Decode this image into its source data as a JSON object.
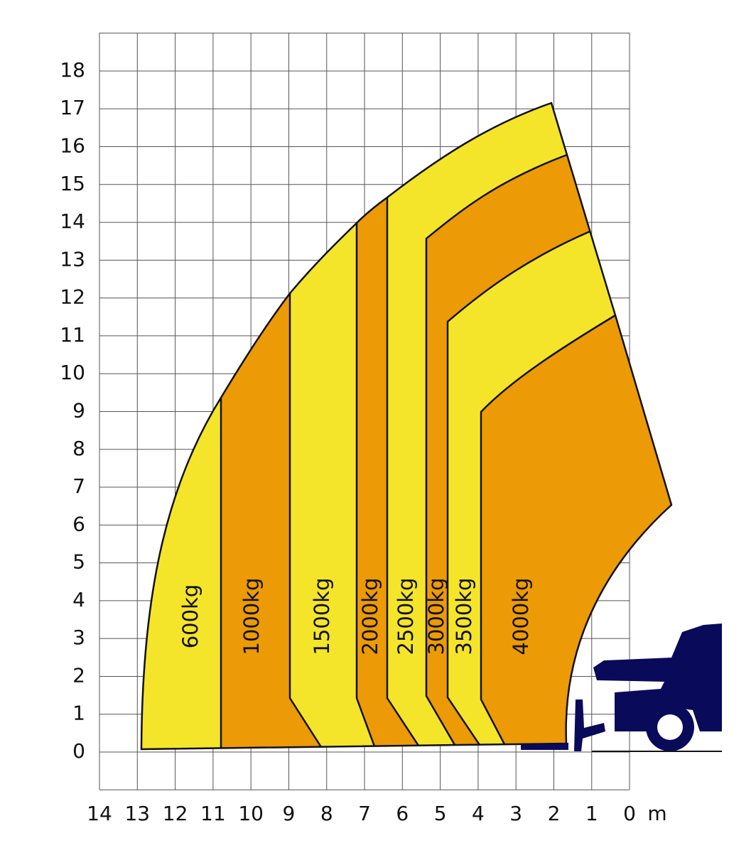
{
  "y_axis": {
    "ticks": [
      "0",
      "1",
      "2",
      "3",
      "4",
      "5",
      "6",
      "7",
      "8",
      "9",
      "10",
      "11",
      "12",
      "13",
      "14",
      "15",
      "16",
      "17",
      "18"
    ]
  },
  "x_axis": {
    "ticks": [
      "14",
      "13",
      "12",
      "11",
      "10",
      "9",
      "8",
      "7",
      "6",
      "5",
      "4",
      "3",
      "2",
      "1",
      "0"
    ],
    "unit": "m"
  },
  "zones": [
    {
      "label": "600kg"
    },
    {
      "label": "1000kg"
    },
    {
      "label": "1500kg"
    },
    {
      "label": "2000kg"
    },
    {
      "label": "2500kg"
    },
    {
      "label": "3000kg"
    },
    {
      "label": "3500kg"
    },
    {
      "label": "4000kg"
    }
  ]
}
